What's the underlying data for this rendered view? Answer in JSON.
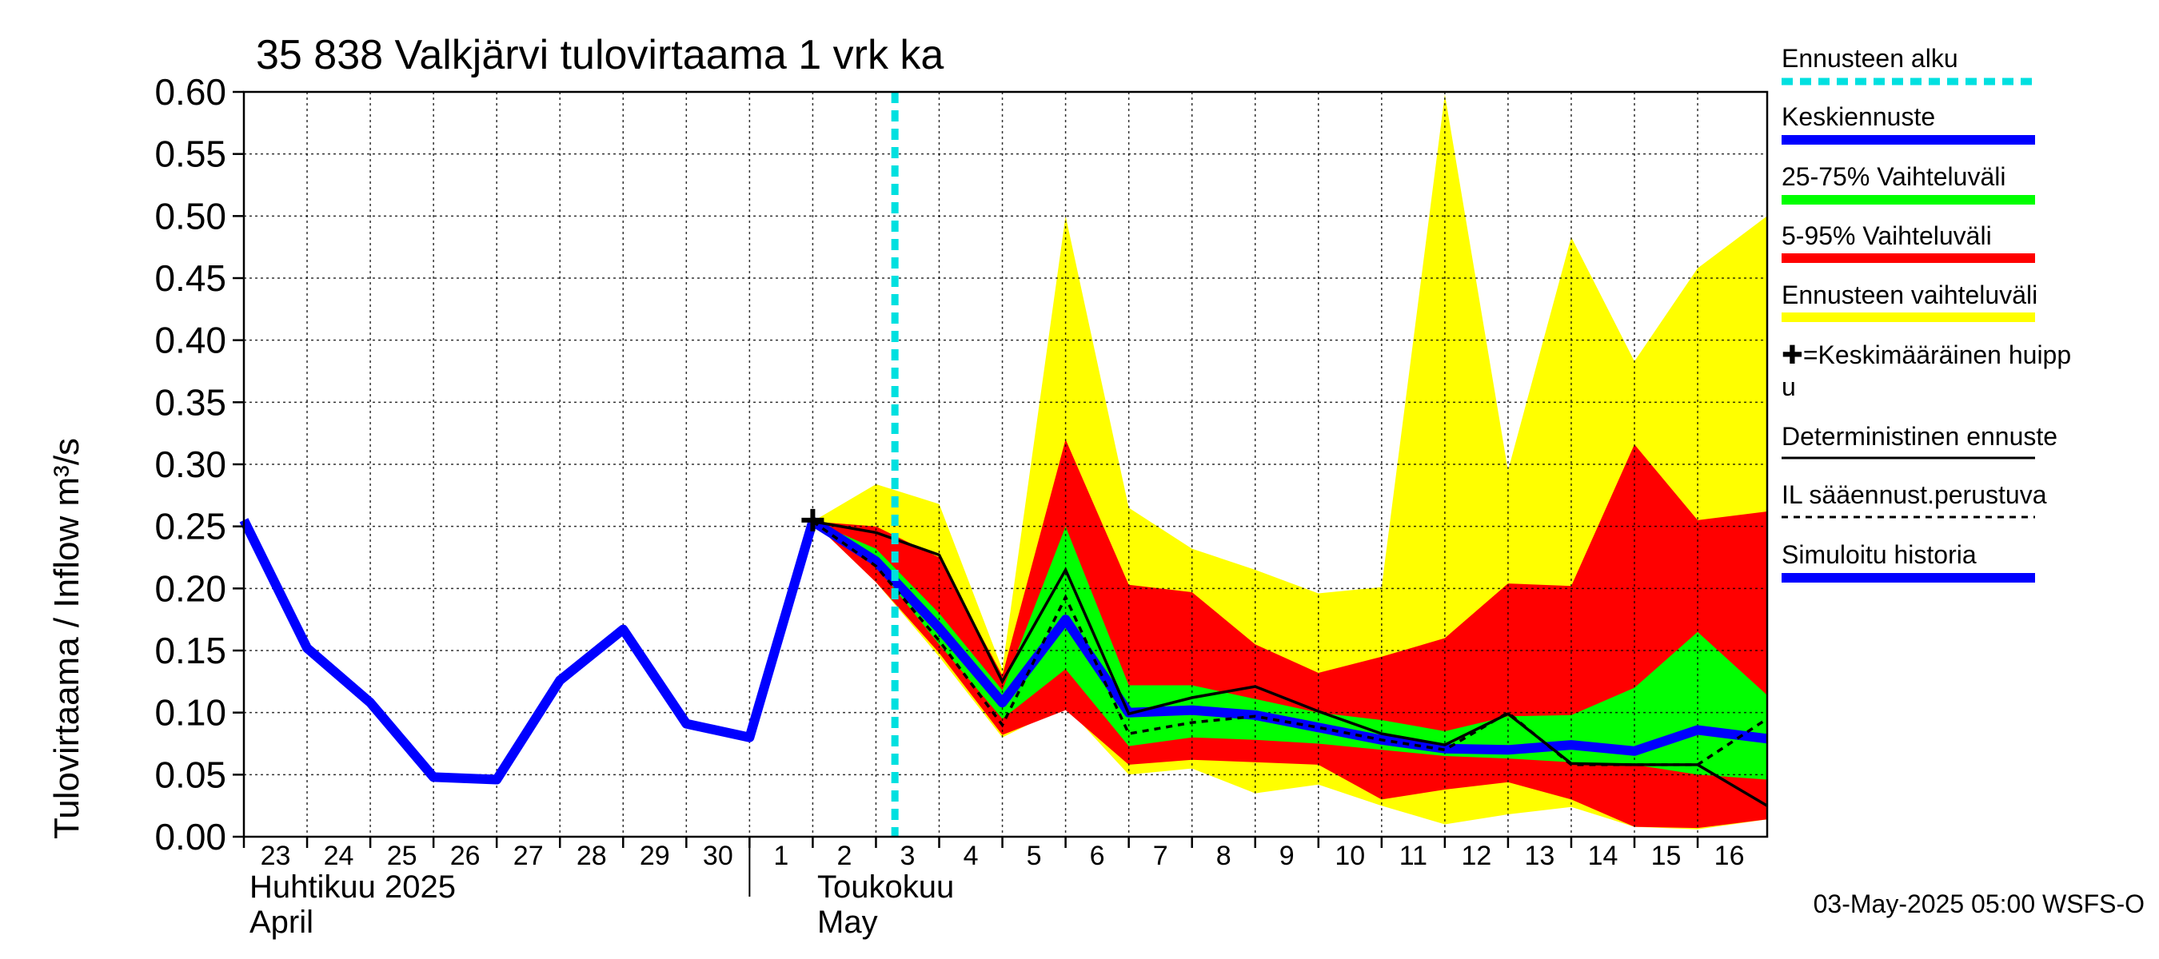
{
  "chart_data": {
    "type": "line",
    "title": "35 838 Valkjärvi tulovirtaama 1 vrk ka",
    "ylabel": "Tulovirtaama / Inflow    m³/s",
    "ylim": [
      0,
      0.6
    ],
    "yticks": [
      "0.00",
      "0.05",
      "0.10",
      "0.15",
      "0.20",
      "0.25",
      "0.30",
      "0.35",
      "0.40",
      "0.45",
      "0.50",
      "0.55",
      "0.60"
    ],
    "ytick_values": [
      0,
      0.05,
      0.1,
      0.15,
      0.2,
      0.25,
      0.3,
      0.35,
      0.4,
      0.45,
      0.5,
      0.55,
      0.6
    ],
    "xlim": [
      -0.5,
      23.6
    ],
    "x_ticks": [
      {
        "x": 0,
        "label": "23"
      },
      {
        "x": 1,
        "label": "24"
      },
      {
        "x": 2,
        "label": "25"
      },
      {
        "x": 3,
        "label": "26"
      },
      {
        "x": 4,
        "label": "27"
      },
      {
        "x": 5,
        "label": "28"
      },
      {
        "x": 6,
        "label": "29"
      },
      {
        "x": 7,
        "label": "30"
      },
      {
        "x": 8,
        "label": "1"
      },
      {
        "x": 9,
        "label": "2"
      },
      {
        "x": 10,
        "label": "3"
      },
      {
        "x": 11,
        "label": "4"
      },
      {
        "x": 12,
        "label": "5"
      },
      {
        "x": 13,
        "label": "6"
      },
      {
        "x": 14,
        "label": "7"
      },
      {
        "x": 15,
        "label": "8"
      },
      {
        "x": 16,
        "label": "9"
      },
      {
        "x": 17,
        "label": "10"
      },
      {
        "x": 18,
        "label": "11"
      },
      {
        "x": 19,
        "label": "12"
      },
      {
        "x": 20,
        "label": "13"
      },
      {
        "x": 21,
        "label": "14"
      },
      {
        "x": 22,
        "label": "15"
      },
      {
        "x": 23,
        "label": "16"
      }
    ],
    "month_labels": {
      "april_fi": "Huhtikuu  2025",
      "april_en": "April",
      "may_fi": "Toukokuu",
      "may_en": "May"
    },
    "forecast_start_x": 9.8,
    "simulated_history": {
      "x": [
        -0.5,
        0.5,
        1.5,
        2.5,
        3.5,
        4.5,
        5.5,
        6.5,
        7.5,
        8.5
      ],
      "y": [
        0.255,
        0.152,
        0.108,
        0.048,
        0.046,
        0.126,
        0.167,
        0.091,
        0.08,
        0.254
      ]
    },
    "forecast_x": [
      8.5,
      9.5,
      10.5,
      11.5,
      12.5,
      13.5,
      14.5,
      15.5,
      16.5,
      17.5,
      18.5,
      19.5,
      20.5,
      21.5,
      22.5,
      23.6
    ],
    "band_full": {
      "upper": [
        0.254,
        0.284,
        0.268,
        0.135,
        0.5,
        0.265,
        0.232,
        0.215,
        0.196,
        0.201,
        0.598,
        0.295,
        0.483,
        0.383,
        0.458,
        0.5
      ],
      "lower": [
        0.254,
        0.205,
        0.145,
        0.08,
        0.105,
        0.05,
        0.055,
        0.035,
        0.042,
        0.025,
        0.01,
        0.018,
        0.024,
        0.008,
        0.006,
        0.014
      ]
    },
    "band_5_95": {
      "upper": [
        0.254,
        0.25,
        0.225,
        0.13,
        0.32,
        0.203,
        0.197,
        0.155,
        0.132,
        0.145,
        0.16,
        0.204,
        0.202,
        0.316,
        0.255,
        0.262
      ],
      "lower": [
        0.254,
        0.205,
        0.148,
        0.082,
        0.102,
        0.058,
        0.062,
        0.06,
        0.058,
        0.03,
        0.038,
        0.044,
        0.03,
        0.008,
        0.007,
        0.014
      ]
    },
    "band_25_75": {
      "upper": [
        0.254,
        0.232,
        0.18,
        0.118,
        0.25,
        0.122,
        0.122,
        0.111,
        0.1,
        0.094,
        0.085,
        0.097,
        0.098,
        0.12,
        0.165,
        0.114
      ],
      "lower": [
        0.254,
        0.218,
        0.155,
        0.095,
        0.135,
        0.073,
        0.08,
        0.078,
        0.075,
        0.07,
        0.065,
        0.063,
        0.06,
        0.058,
        0.05,
        0.046
      ]
    },
    "median_forecast": [
      0.254,
      0.222,
      0.168,
      0.108,
      0.175,
      0.1,
      0.102,
      0.098,
      0.088,
      0.078,
      0.071,
      0.07,
      0.074,
      0.069,
      0.086,
      0.079
    ],
    "deterministic": [
      0.254,
      0.245,
      0.227,
      0.125,
      0.215,
      0.099,
      0.112,
      0.121,
      0.101,
      0.083,
      0.074,
      0.099,
      0.059,
      0.058,
      0.058,
      0.025
    ],
    "il_weather": [
      0.254,
      0.218,
      0.158,
      0.09,
      0.193,
      0.083,
      0.092,
      0.097,
      0.088,
      0.078,
      0.07,
      0.1,
      0.058,
      0.058,
      0.058,
      0.095
    ],
    "mean_peak": {
      "x": 8.5,
      "y": 0.255
    },
    "legend": [
      {
        "label": "Ennusteen alku",
        "color": "#00e0e0",
        "style": "dashed"
      },
      {
        "label": "Keskiennuste",
        "color": "#0000ff",
        "style": "solid"
      },
      {
        "label": "25-75% Vaihteluväli",
        "color": "#00ff00",
        "style": "solid"
      },
      {
        "label": "5-95% Vaihteluväli",
        "color": "#ff0000",
        "style": "solid"
      },
      {
        "label": "Ennusteen vaihteluväli",
        "color": "#ffff00",
        "style": "solid"
      },
      {
        "label": "✚=Keskimääräinen huipp",
        "label2": "u",
        "color": "",
        "style": "none"
      },
      {
        "label": "Deterministinen ennuste",
        "color": "#000000",
        "style": "thin"
      },
      {
        "label": "IL sääennust.perustuva",
        "color": "#000000",
        "style": "dotted"
      },
      {
        "label": "Simuloitu historia",
        "color": "#0000ff",
        "style": "solid"
      }
    ],
    "colors": {
      "yellow": "#ffff00",
      "red": "#ff0000",
      "green": "#00ff00",
      "blue": "#0000ff",
      "cyan": "#00e0e0",
      "black": "#000000"
    }
  },
  "footer": "03-May-2025 05:00 WSFS-O"
}
